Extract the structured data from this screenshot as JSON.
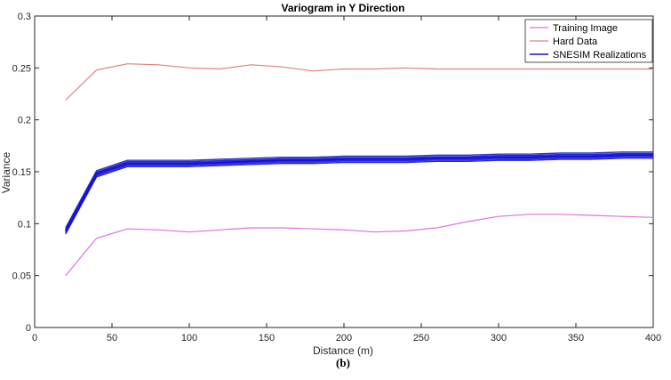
{
  "chart_data": {
    "type": "line",
    "title": "Variogram in Y Direction",
    "xlabel": "Distance (m)",
    "ylabel": "Variance",
    "xlim": [
      0,
      400
    ],
    "ylim": [
      0,
      0.3
    ],
    "xticks": [
      0,
      50,
      100,
      150,
      200,
      250,
      300,
      350,
      400
    ],
    "yticks": [
      0,
      0.05,
      0.1,
      0.15,
      0.2,
      0.25,
      0.3
    ],
    "xtick_labels": [
      "0",
      "50",
      "100",
      "150",
      "200",
      "250",
      "300",
      "350",
      "400"
    ],
    "ytick_labels": [
      "0",
      "0.05",
      "0.1",
      "0.15",
      "0.2",
      "0.25",
      "0.3"
    ],
    "grid": false,
    "legend_position": "top-right",
    "caption": "(b)",
    "series": [
      {
        "name": "Training Image",
        "color": "#e070e0",
        "x": [
          20,
          40,
          60,
          80,
          100,
          120,
          140,
          160,
          180,
          200,
          220,
          240,
          260,
          280,
          300,
          320,
          340,
          360,
          380,
          400
        ],
        "values": [
          0.05,
          0.086,
          0.095,
          0.094,
          0.092,
          0.094,
          0.096,
          0.096,
          0.095,
          0.094,
          0.092,
          0.093,
          0.096,
          0.102,
          0.107,
          0.109,
          0.109,
          0.108,
          0.107,
          0.106
        ]
      },
      {
        "name": "Hard Data",
        "color": "#e08080",
        "x": [
          20,
          40,
          60,
          80,
          100,
          120,
          140,
          160,
          180,
          200,
          220,
          240,
          260,
          280,
          300,
          320,
          340,
          360,
          380,
          400
        ],
        "values": [
          0.219,
          0.248,
          0.254,
          0.253,
          0.25,
          0.249,
          0.253,
          0.251,
          0.247,
          0.249,
          0.249,
          0.25,
          0.249,
          0.249,
          0.249,
          0.249,
          0.249,
          0.249,
          0.249,
          0.249
        ]
      },
      {
        "name": "SNESIM Realizations",
        "color": "#1010d8",
        "x": [
          20,
          40,
          60,
          80,
          100,
          120,
          140,
          160,
          180,
          200,
          220,
          240,
          260,
          280,
          300,
          320,
          340,
          360,
          380,
          400
        ],
        "values": [
          0.093,
          0.148,
          0.158,
          0.158,
          0.158,
          0.159,
          0.16,
          0.161,
          0.161,
          0.162,
          0.162,
          0.162,
          0.163,
          0.163,
          0.164,
          0.164,
          0.165,
          0.165,
          0.166,
          0.166
        ],
        "realization_spread": 0.003
      }
    ]
  }
}
